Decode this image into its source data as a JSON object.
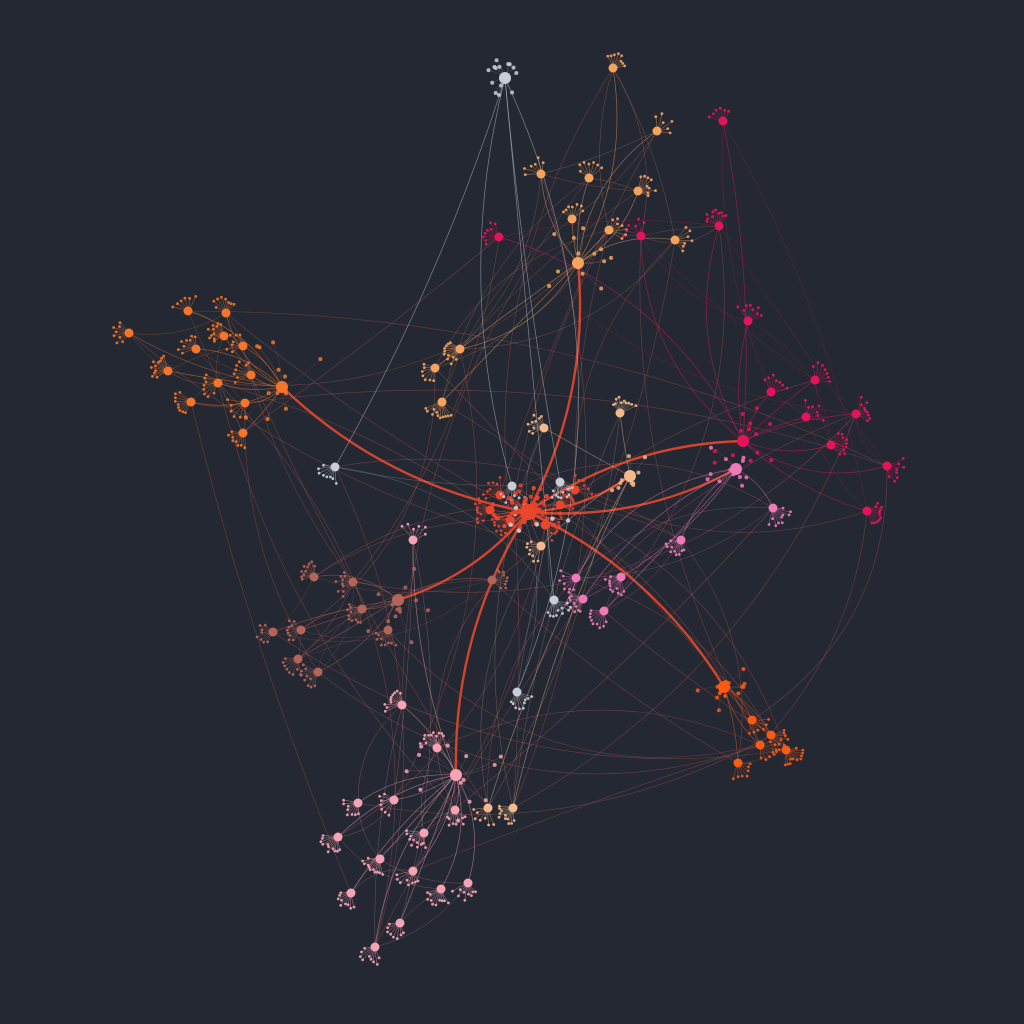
{
  "diagram": {
    "type": "network-graph",
    "background": "#232833",
    "labels_visible": false,
    "root": "center",
    "clusters": [
      {
        "id": "center",
        "color": "#e8472c"
      },
      {
        "id": "orange_nw",
        "color": "#f5762a"
      },
      {
        "id": "peach_north",
        "color": "#f6a35e"
      },
      {
        "id": "magenta_east",
        "color": "#e5145a"
      },
      {
        "id": "pink_east",
        "color": "#f07ab8"
      },
      {
        "id": "brown_west",
        "color": "#b3655a"
      },
      {
        "id": "pink_south",
        "color": "#f8a3b5"
      },
      {
        "id": "orangered_se",
        "color": "#fb5a12"
      },
      {
        "id": "grey_misc",
        "color": "#c9ced6"
      },
      {
        "id": "peach_mid",
        "color": "#f2b98c"
      }
    ],
    "major_links": [
      [
        "center",
        "orange_nw"
      ],
      [
        "center",
        "peach_north"
      ],
      [
        "center",
        "magenta_east"
      ],
      [
        "center",
        "pink_east"
      ],
      [
        "center",
        "brown_west"
      ],
      [
        "center",
        "pink_south"
      ],
      [
        "center",
        "orangered_se"
      ],
      [
        "center",
        "peach_mid"
      ]
    ]
  }
}
